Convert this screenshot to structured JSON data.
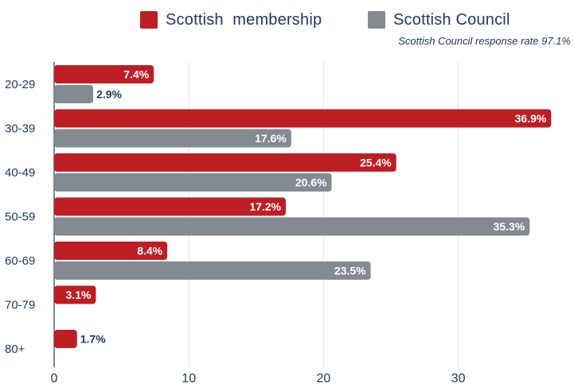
{
  "legend": {
    "membership_label": "Scottish  membership",
    "council_label": "Scottish Council"
  },
  "note": "Scottish Council response rate 97.1%",
  "colors": {
    "membership": "#bd1e24",
    "council": "#848a92",
    "axis_text": "#1f3864",
    "grid": "#e6e6e6"
  },
  "chart_data": {
    "type": "bar",
    "orientation": "horizontal",
    "categories": [
      "20-29",
      "30-39",
      "40-49",
      "50-59",
      "60-69",
      "70-79",
      "80+"
    ],
    "series": [
      {
        "name": "Scottish  membership",
        "values": [
          7.4,
          36.9,
          25.4,
          17.2,
          8.4,
          3.1,
          1.7
        ],
        "labels": [
          "7.4%",
          "36.9%",
          "25.4%",
          "17.2%",
          "8.4%",
          "3.1%",
          "1.7%"
        ]
      },
      {
        "name": "Scottish Council",
        "values": [
          2.9,
          17.6,
          20.6,
          35.3,
          23.5,
          null,
          null
        ],
        "labels": [
          "2.9%",
          "17.6%",
          "20.6%",
          "35.3%",
          "23.5%",
          "",
          ""
        ]
      }
    ],
    "xticks": [
      "0",
      "10",
      "20",
      "30"
    ],
    "xlim": [
      0,
      38
    ],
    "grid": "vertical",
    "legend_position": "top"
  }
}
